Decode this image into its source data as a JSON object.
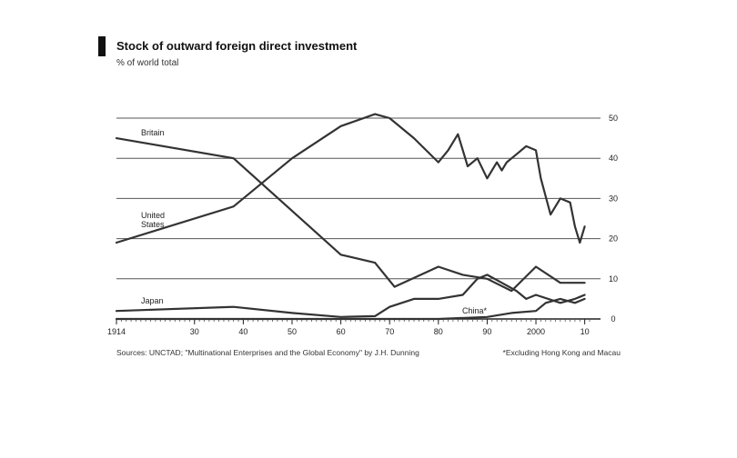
{
  "header": {
    "title": "Stock of outward foreign direct investment",
    "subtitle": "% of world total"
  },
  "footer": {
    "source": "Sources: UNCTAD; \"Multinational Enterprises and the Global Economy\" by J.H. Dunning",
    "footnote": "*Excluding Hong Kong and Macau"
  },
  "chart_data": {
    "type": "line",
    "title": "Stock of outward foreign direct investment",
    "ylabel": "% of world total",
    "xlim": [
      1914,
      2011
    ],
    "ylim": [
      0,
      50
    ],
    "grid": true,
    "y_axis_side": "right",
    "x_ticks": [
      {
        "value": 1914,
        "label": "1914"
      },
      {
        "value": 1930,
        "label": "30"
      },
      {
        "value": 1940,
        "label": "40"
      },
      {
        "value": 1950,
        "label": "50"
      },
      {
        "value": 1960,
        "label": "60"
      },
      {
        "value": 1970,
        "label": "70"
      },
      {
        "value": 1980,
        "label": "80"
      },
      {
        "value": 1990,
        "label": "90"
      },
      {
        "value": 2000,
        "label": "2000"
      },
      {
        "value": 2010,
        "label": "10"
      }
    ],
    "y_ticks": [
      0,
      10,
      20,
      30,
      40,
      50
    ],
    "series": [
      {
        "name": "Britain",
        "label_lines": [
          "Britain"
        ],
        "color": "#333333",
        "x": [
          1914,
          1938,
          1960,
          1967,
          1971,
          1980,
          1985,
          1990,
          1995,
          2000,
          2005,
          2010
        ],
        "y": [
          45,
          40,
          16,
          14,
          8,
          13,
          11,
          10,
          7,
          13,
          9,
          9
        ]
      },
      {
        "name": "United States",
        "label_lines": [
          "United",
          "States"
        ],
        "color": "#333333",
        "x": [
          1914,
          1938,
          1950,
          1960,
          1967,
          1970,
          1975,
          1980,
          1982,
          1984,
          1986,
          1988,
          1990,
          1992,
          1993,
          1994,
          1996,
          1998,
          2000,
          2001,
          2003,
          2005,
          2007,
          2008,
          2009,
          2010
        ],
        "y": [
          19,
          28,
          40,
          48,
          51,
          50,
          45,
          39,
          42,
          46,
          38,
          40,
          35,
          39,
          37,
          39,
          41,
          43,
          42,
          35,
          26,
          30,
          29,
          23,
          19,
          23
        ]
      },
      {
        "name": "Japan",
        "label_lines": [
          "Japan"
        ],
        "color": "#333333",
        "x": [
          1914,
          1938,
          1950,
          1960,
          1967,
          1970,
          1975,
          1980,
          1985,
          1988,
          1990,
          1993,
          1996,
          1998,
          2000,
          2005,
          2008,
          2010
        ],
        "y": [
          2,
          3,
          1.5,
          0.5,
          0.7,
          3,
          5,
          5,
          6,
          10,
          11,
          9,
          7,
          5,
          6,
          4,
          5,
          6
        ]
      },
      {
        "name": "China*",
        "label_lines": [
          "China*"
        ],
        "color": "#333333",
        "x": [
          1914,
          1960,
          1980,
          1990,
          1995,
          2000,
          2002,
          2005,
          2008,
          2010
        ],
        "y": [
          0,
          0,
          0,
          0.5,
          1.5,
          2,
          4,
          5,
          4,
          5
        ]
      }
    ]
  }
}
